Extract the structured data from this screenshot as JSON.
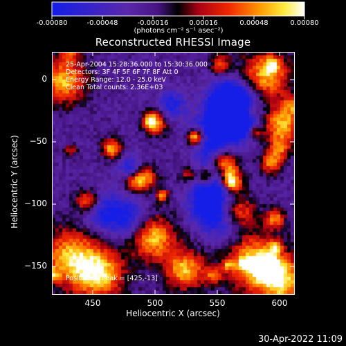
{
  "colorbar": {
    "tick_labels": [
      "-0.00080",
      "-0.00048",
      "-0.00016",
      "0.00016",
      "0.00048",
      "0.00080"
    ],
    "units": "(photons cm⁻² s⁻¹ asec⁻²)",
    "min": -0.0008,
    "max": 0.0008
  },
  "title": "Reconstructed RHESSI Image",
  "info": {
    "time": "25-Apr-2004 15:28:36.000 to 15:30:36.000",
    "detectors": "Detectors: 3F 4F 5F 6F 7F 8F Att 0",
    "energy": "Energy Range: 12.0 - 25.0 keV",
    "algorithm": "Clean    Total counts: 2.36E+03",
    "peak": "Position of Peak = [425,-13]"
  },
  "axes": {
    "x_title": "Heliocentric X (arcsec)",
    "y_title": "Heliocentric Y (arcsec)",
    "x_ticks": [
      "450",
      "500",
      "550",
      "600"
    ],
    "y_ticks": [
      "0",
      "−50",
      "−100",
      "−150"
    ],
    "x_range": [
      417,
      613
    ],
    "y_range": [
      -172,
      22
    ]
  },
  "timestamp": "30-Apr-2022 11:09"
}
